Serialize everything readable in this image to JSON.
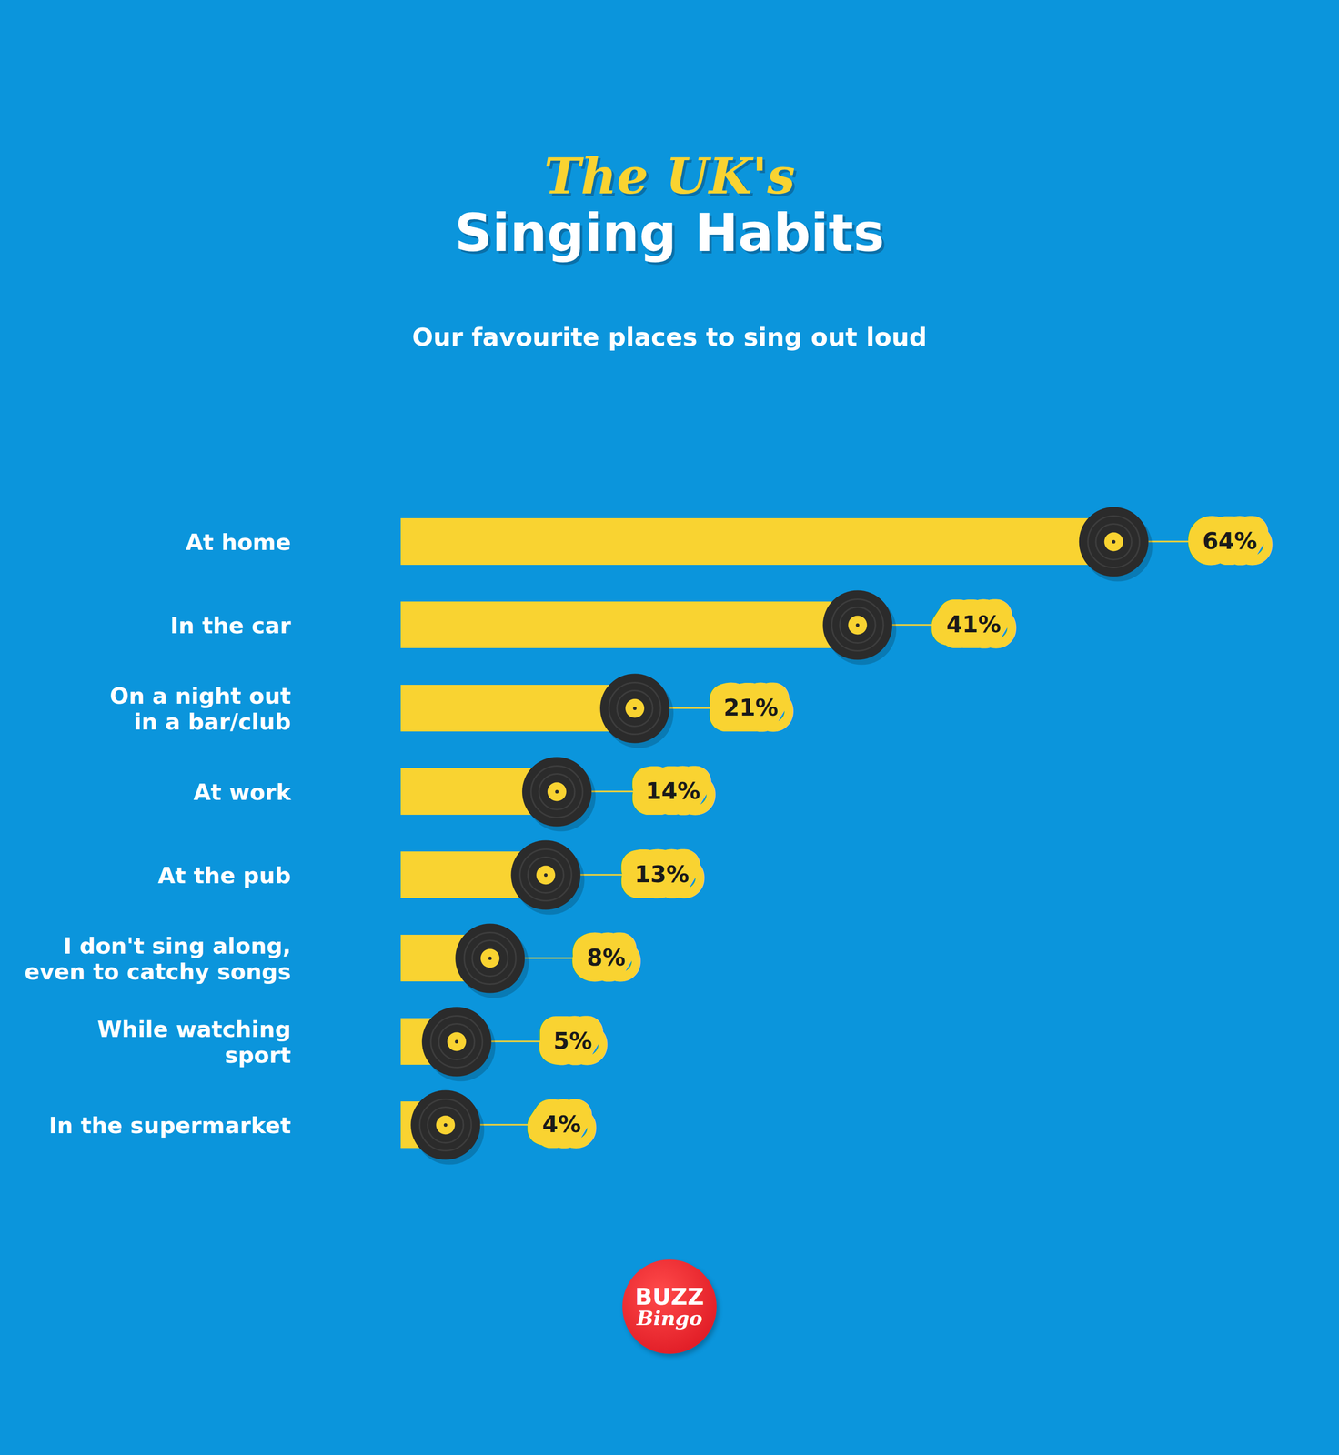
{
  "chart_data": {
    "type": "bar",
    "orientation": "horizontal",
    "title": "The UK's Singing Habits",
    "subtitle": "Our favourite places to sing out loud",
    "categories": [
      "At home",
      "In the car",
      "On a night out in a bar/club",
      "At work",
      "At the pub",
      "I don't sing along, even to catchy songs",
      "While watching sport",
      "In the supermarket"
    ],
    "values": [
      64,
      41,
      21,
      14,
      13,
      8,
      5,
      4
    ],
    "value_labels": [
      "64%",
      "41%",
      "21%",
      "14%",
      "13%",
      "8%",
      "5%",
      "4%"
    ],
    "color": "#f9d331",
    "xlim": [
      0,
      70
    ],
    "data_labels": true,
    "tick_labels": "y",
    "grid": false,
    "annotations": [
      "BUZZ",
      "Bingo"
    ]
  }
}
